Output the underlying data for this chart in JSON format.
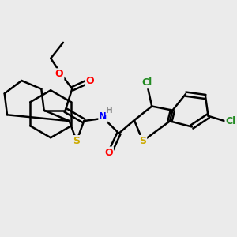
{
  "background_color": "#ebebeb",
  "bond_color": "#000000",
  "bond_width": 1.8,
  "atom_colors": {
    "O": "#ff0000",
    "S": "#ccaa00",
    "N": "#0000ff",
    "Cl": "#228b22",
    "H": "#888888"
  },
  "figsize": [
    3.0,
    3.0
  ],
  "dpi": 100
}
